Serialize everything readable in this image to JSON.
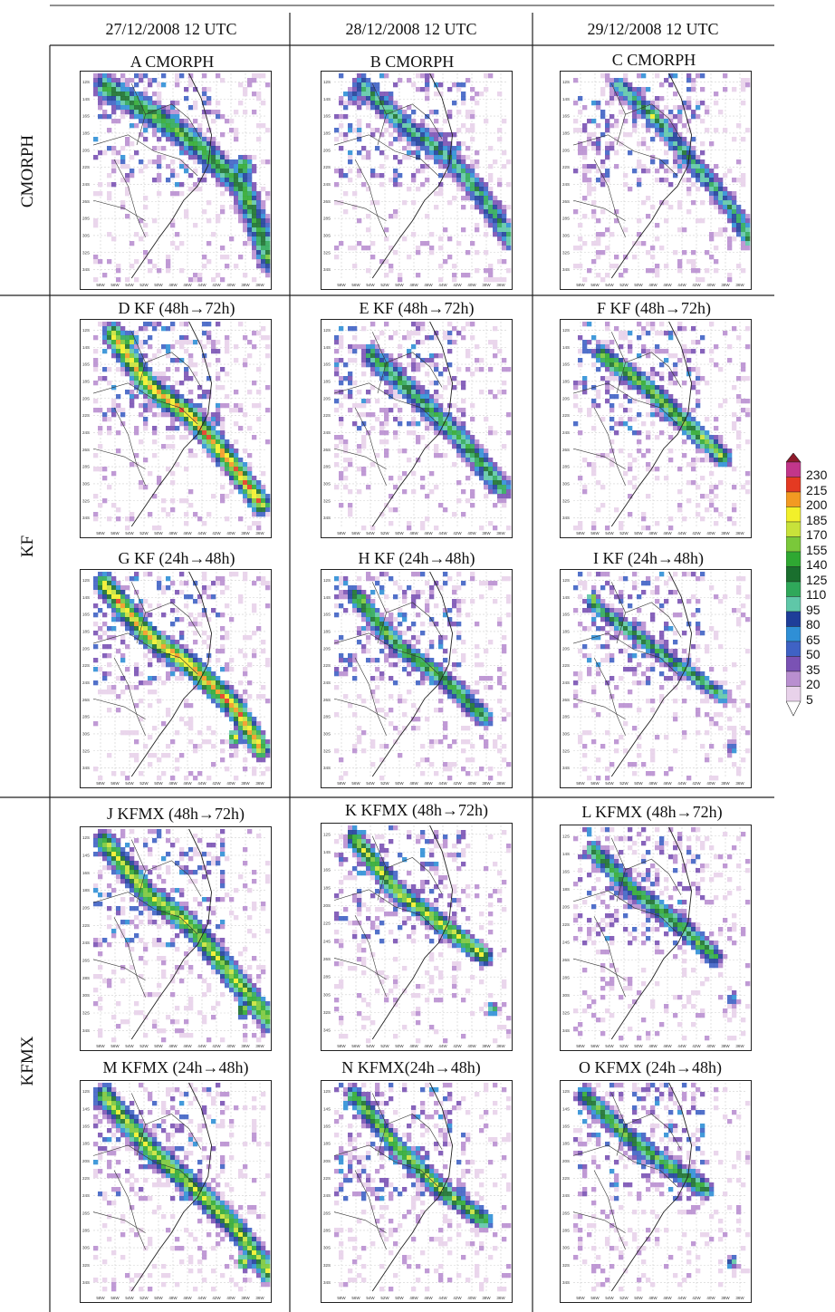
{
  "columns": [
    "27/12/2008 12 UTC",
    "28/12/2008 12 UTC",
    "29/12/2008 12 UTC"
  ],
  "row_groups": [
    "CMORPH",
    "KF",
    "KFMX"
  ],
  "panels": [
    {
      "id": "A",
      "title": "A CMORPH"
    },
    {
      "id": "B",
      "title": "B CMORPH"
    },
    {
      "id": "C",
      "title": "C CMORPH"
    },
    {
      "id": "D",
      "title": "D KF (48h→72h)"
    },
    {
      "id": "E",
      "title": "E KF (48h→72h)"
    },
    {
      "id": "F",
      "title": "F KF (48h→72h)"
    },
    {
      "id": "G",
      "title": "G KF (24h→48h)"
    },
    {
      "id": "H",
      "title": "H KF (24h→48h)"
    },
    {
      "id": "I",
      "title": "I KF (24h→48h)"
    },
    {
      "id": "J",
      "title": "J KFMX (48h→72h)"
    },
    {
      "id": "K",
      "title": "K KFMX (48h→72h)"
    },
    {
      "id": "L",
      "title": "L KFMX (48h→72h)"
    },
    {
      "id": "M",
      "title": "M KFMX (24h→48h)"
    },
    {
      "id": "N",
      "title": "N KFMX(24h→48h)"
    },
    {
      "id": "O",
      "title": "O KFMX (24h→48h)"
    }
  ],
  "lat_ticks": [
    "12S",
    "14S",
    "16S",
    "18S",
    "20S",
    "22S",
    "24S",
    "26S",
    "28S",
    "30S",
    "32S",
    "34S"
  ],
  "lon_ticks": [
    "58W",
    "56W",
    "54W",
    "52W",
    "50W",
    "48W",
    "46W",
    "44W",
    "42W",
    "40W",
    "38W",
    "36W"
  ],
  "colorbar": {
    "levels": [
      "230",
      "215",
      "200",
      "185",
      "170",
      "155",
      "140",
      "125",
      "110",
      "95",
      "80",
      "65",
      "50",
      "35",
      "20",
      "5"
    ],
    "colors": [
      "#e8d2ea",
      "#b98fd0",
      "#7a52b4",
      "#3f62c4",
      "#2f8fd6",
      "#1e3e99",
      "#5fc7a8",
      "#2fa85a",
      "#1a6f2e",
      "#2fa832",
      "#7ac83a",
      "#c8e23a",
      "#f2f02a",
      "#f29a22",
      "#e43a22",
      "#c2368a",
      "#8e1a2a"
    ]
  }
}
